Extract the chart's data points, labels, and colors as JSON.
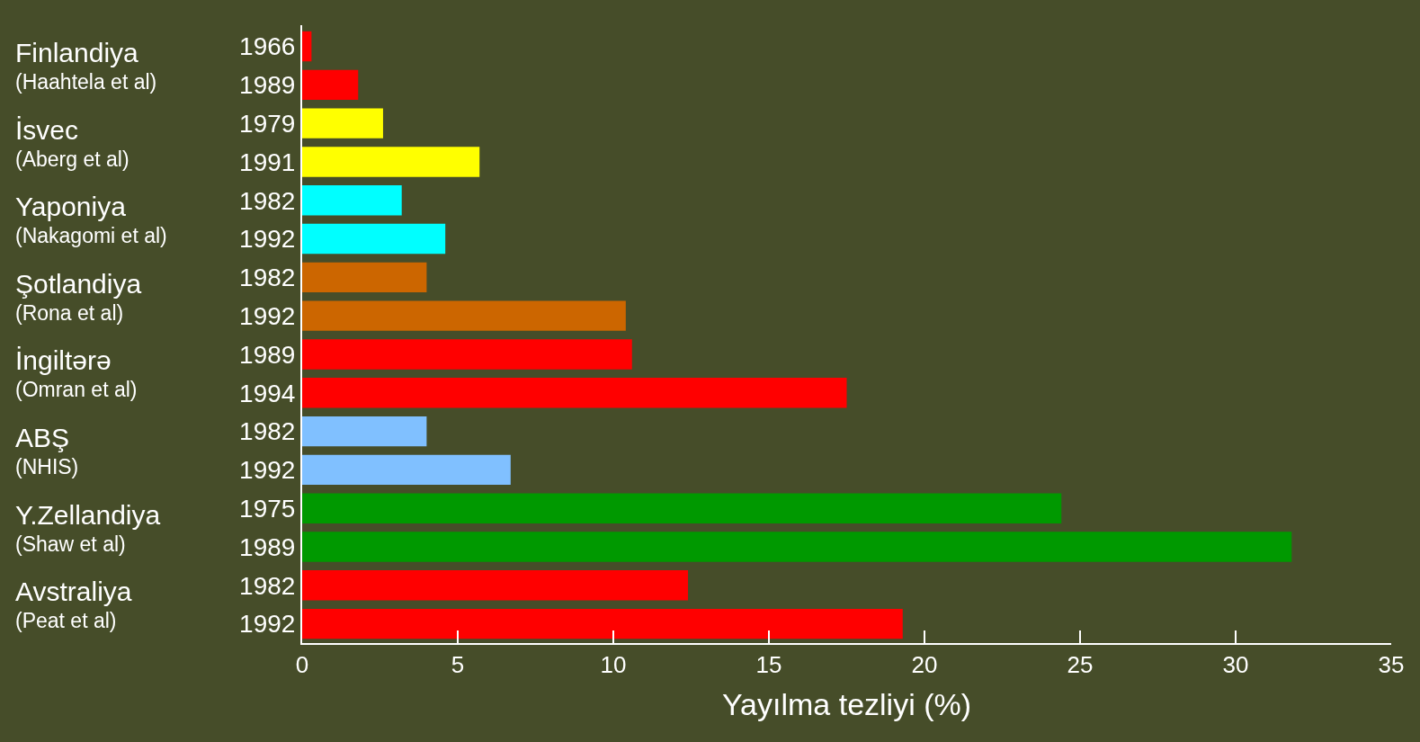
{
  "chart_data": {
    "type": "bar",
    "orientation": "horizontal",
    "xlabel": "Yayılma tezliyi (%)",
    "categories": [
      "1966",
      "1989",
      "1979",
      "1991",
      "1982",
      "1992",
      "1982",
      "1992",
      "1989",
      "1994",
      "1982",
      "1992",
      "1975",
      "1989",
      "1982",
      "1992"
    ],
    "values": [
      0.3,
      1.8,
      2.6,
      5.7,
      3.2,
      4.6,
      4.0,
      10.4,
      10.6,
      17.5,
      4.0,
      6.7,
      24.4,
      31.8,
      12.4,
      19.3
    ],
    "colors": [
      "#ff0000",
      "#ff0000",
      "#ffff00",
      "#ffff00",
      "#00ffff",
      "#00ffff",
      "#cc6600",
      "#cc6600",
      "#ff0000",
      "#ff0000",
      "#80c0ff",
      "#80c0ff",
      "#009900",
      "#009900",
      "#ff0000",
      "#ff0000"
    ],
    "xlim": [
      0,
      35
    ],
    "xticks": [
      0,
      5,
      10,
      15,
      20,
      25,
      30,
      35
    ],
    "grid": false,
    "legend": false,
    "annotations": [
      "Finlandiya\n(Haahtela et al)",
      "İsvec\n(Aberg et al)",
      "Yaponiya\n(Nakagomi et al)",
      "Şotlandiya\n(Rona et al)",
      "İngiltərə\n(Omran et al)",
      "ABŞ\n(NHIS)",
      "Y.Zellandiya\n(Shaw et al)",
      "Avstraliya\n(Peat et al)"
    ]
  }
}
